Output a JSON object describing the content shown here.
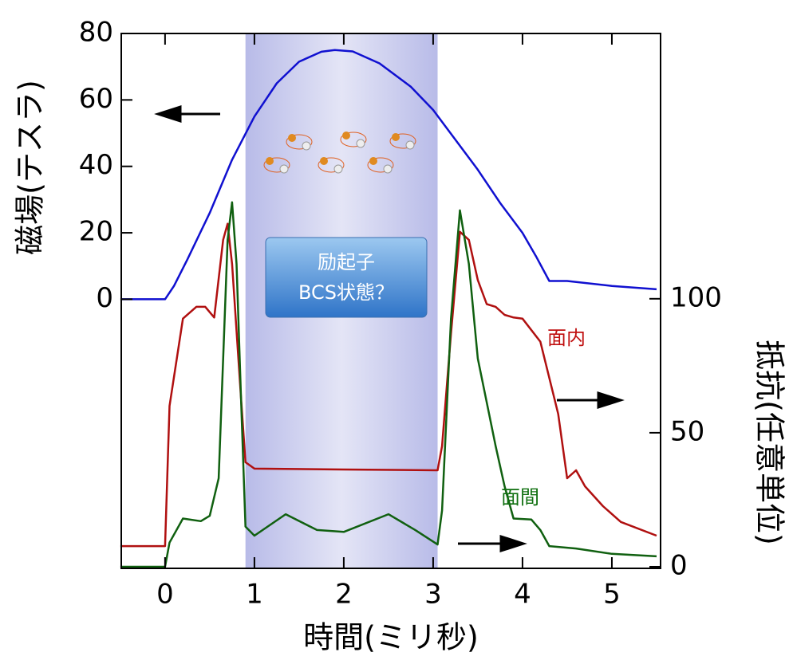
{
  "chart_data": {
    "type": "line",
    "x_label": "時間(ミリ秒)",
    "y_label": "磁場(テスラ)",
    "y2_label": "抵抗(任意単位)",
    "annotation": [
      "励起子",
      "BCS状態？"
    ],
    "xlim": [
      -0.49,
      5.545
    ],
    "xticks": [
      0,
      1,
      2,
      3,
      4,
      5
    ],
    "ylim": [
      -81,
      80
    ],
    "yticks": [
      0,
      20,
      40,
      60,
      80
    ],
    "y2lim": [
      -0.6,
      199
    ],
    "y2ticks": [
      0,
      50,
      100
    ],
    "shaded_region": [
      0.9,
      3.05
    ],
    "series": [
      {
        "color": "#1010d0",
        "axis": "y",
        "x": [
          -0.5,
          0,
          0.1,
          0.25,
          0.5,
          0.75,
          1,
          1.25,
          1.5,
          1.75,
          1.9,
          2.1,
          2.4,
          2.75,
          3,
          3.25,
          3.5,
          3.75,
          4,
          4.15,
          4.3,
          4.5,
          5,
          5.5
        ],
        "values": [
          0,
          0,
          4,
          12,
          26,
          42,
          55,
          65,
          71.5,
          74.5,
          75,
          74.6,
          71,
          64,
          57,
          48,
          39,
          29,
          20,
          13,
          5.5,
          5.5,
          4,
          3
        ]
      },
      {
        "name": "面内",
        "color": "#b01010",
        "axis": "y2",
        "x": [
          -0.5,
          0,
          0.05,
          0.2,
          0.35,
          0.45,
          0.55,
          0.65,
          0.7,
          0.75,
          0.85,
          0.9,
          1,
          2,
          3.05,
          3.1,
          3.2,
          3.3,
          3.4,
          3.5,
          3.6,
          3.7,
          3.8,
          3.9,
          4,
          4.2,
          4.4,
          4.5,
          4.6,
          4.7,
          4.9,
          5.1,
          5.5
        ],
        "values": [
          7.7,
          7.7,
          60,
          92.6,
          97,
          97,
          93,
          122,
          128,
          113,
          63,
          39,
          36.6,
          36.3,
          36,
          45,
          87,
          125,
          122,
          107,
          98,
          97,
          94,
          93,
          92.6,
          84,
          57,
          33,
          36,
          30,
          22.6,
          16.7,
          11.6
        ]
      },
      {
        "name": "面間",
        "color": "#106010",
        "axis": "y2",
        "x": [
          -0.5,
          0,
          0.05,
          0.2,
          0.4,
          0.5,
          0.6,
          0.7,
          0.75,
          0.8,
          0.85,
          0.9,
          1,
          1.35,
          1.7,
          2,
          2.5,
          2.8,
          3.05,
          3.1,
          3.2,
          3.3,
          3.4,
          3.5,
          3.7,
          3.8,
          3.9,
          4.1,
          4.2,
          4.3,
          4.6,
          5,
          5.5
        ],
        "values": [
          0,
          0,
          9,
          18,
          17,
          19,
          33,
          122,
          136,
          113,
          63,
          15,
          11.6,
          19.6,
          13.7,
          13,
          19.6,
          13.7,
          8.3,
          21,
          92.6,
          133,
          113,
          77.7,
          45,
          30,
          18,
          17.6,
          13.7,
          7.7,
          6.8,
          4.8,
          3.9
        ]
      }
    ]
  }
}
